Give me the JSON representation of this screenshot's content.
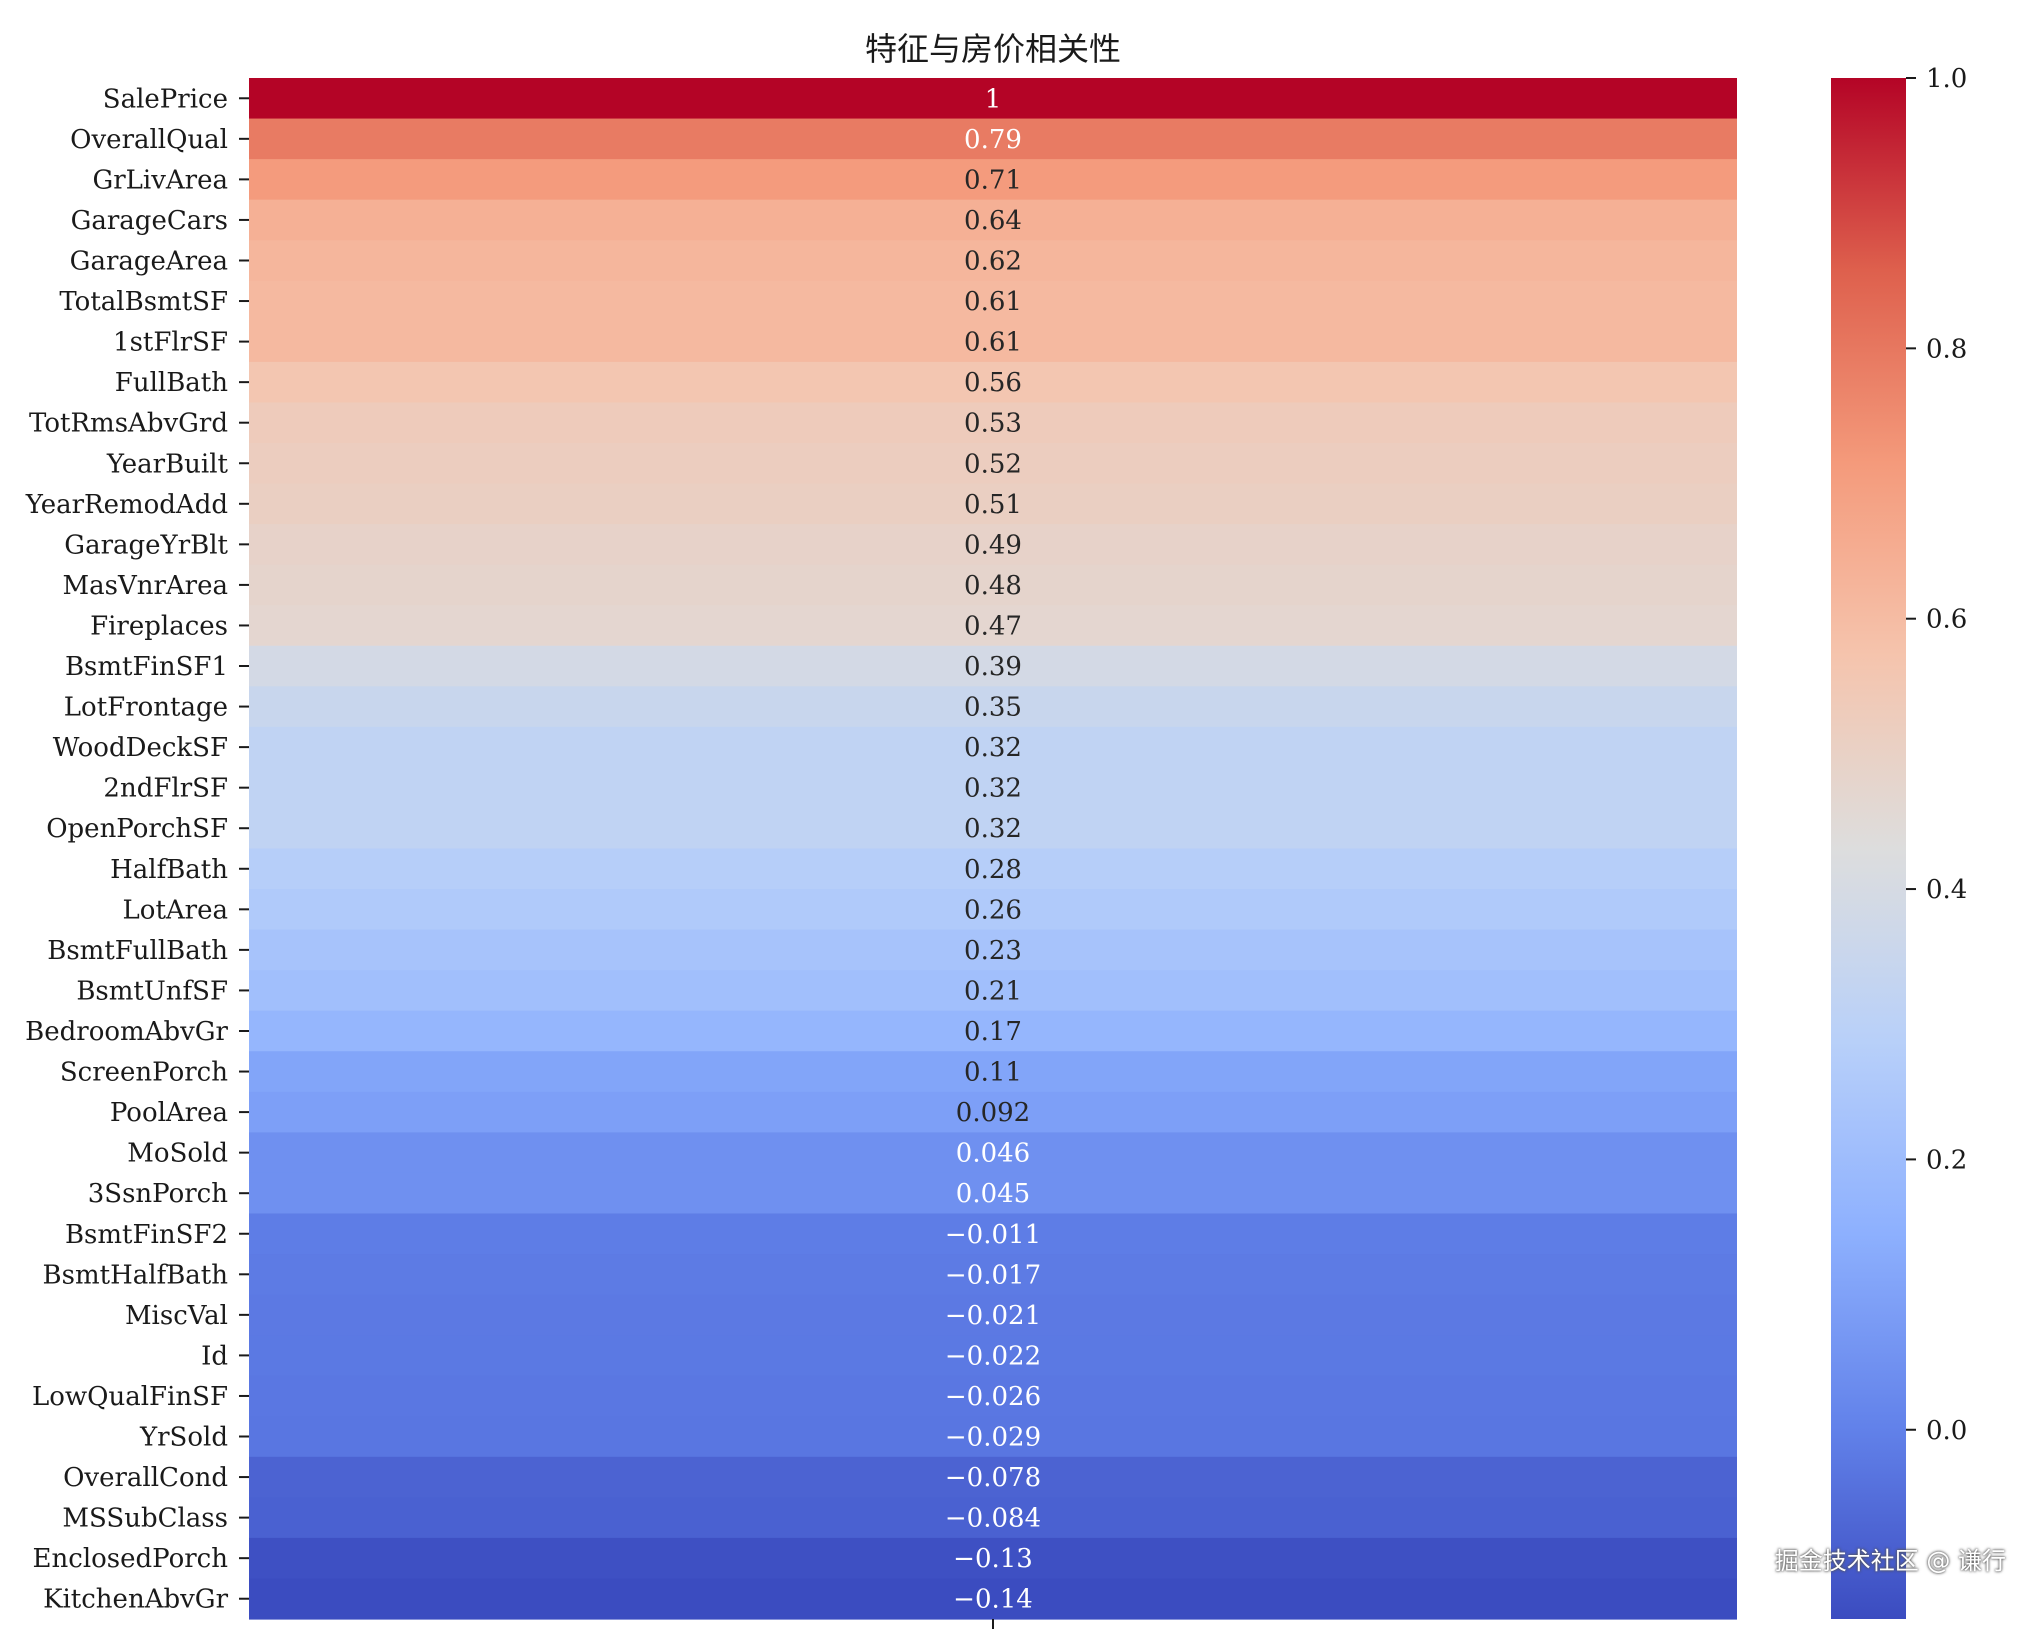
{
  "watermark": "掘金技术社区 @ 谦行",
  "chart_data": {
    "type": "heatmap",
    "title": "特征与房价相关性",
    "colormap": "coolwarm",
    "colorbar": {
      "range": [
        -0.14,
        1.0
      ],
      "ticks": [
        "0.0",
        "0.2",
        "0.4",
        "0.6",
        "0.8",
        "1.0"
      ],
      "tick_values": [
        0.0,
        0.2,
        0.4,
        0.6,
        0.8,
        1.0
      ]
    },
    "rows": [
      {
        "feature": "SalePrice",
        "value": 1,
        "label": "1"
      },
      {
        "feature": "OverallQual",
        "value": 0.79,
        "label": "0.79"
      },
      {
        "feature": "GrLivArea",
        "value": 0.71,
        "label": "0.71"
      },
      {
        "feature": "GarageCars",
        "value": 0.64,
        "label": "0.64"
      },
      {
        "feature": "GarageArea",
        "value": 0.62,
        "label": "0.62"
      },
      {
        "feature": "TotalBsmtSF",
        "value": 0.61,
        "label": "0.61"
      },
      {
        "feature": "1stFlrSF",
        "value": 0.61,
        "label": "0.61"
      },
      {
        "feature": "FullBath",
        "value": 0.56,
        "label": "0.56"
      },
      {
        "feature": "TotRmsAbvGrd",
        "value": 0.53,
        "label": "0.53"
      },
      {
        "feature": "YearBuilt",
        "value": 0.52,
        "label": "0.52"
      },
      {
        "feature": "YearRemodAdd",
        "value": 0.51,
        "label": "0.51"
      },
      {
        "feature": "GarageYrBlt",
        "value": 0.49,
        "label": "0.49"
      },
      {
        "feature": "MasVnrArea",
        "value": 0.48,
        "label": "0.48"
      },
      {
        "feature": "Fireplaces",
        "value": 0.47,
        "label": "0.47"
      },
      {
        "feature": "BsmtFinSF1",
        "value": 0.39,
        "label": "0.39"
      },
      {
        "feature": "LotFrontage",
        "value": 0.35,
        "label": "0.35"
      },
      {
        "feature": "WoodDeckSF",
        "value": 0.32,
        "label": "0.32"
      },
      {
        "feature": "2ndFlrSF",
        "value": 0.32,
        "label": "0.32"
      },
      {
        "feature": "OpenPorchSF",
        "value": 0.32,
        "label": "0.32"
      },
      {
        "feature": "HalfBath",
        "value": 0.28,
        "label": "0.28"
      },
      {
        "feature": "LotArea",
        "value": 0.26,
        "label": "0.26"
      },
      {
        "feature": "BsmtFullBath",
        "value": 0.23,
        "label": "0.23"
      },
      {
        "feature": "BsmtUnfSF",
        "value": 0.21,
        "label": "0.21"
      },
      {
        "feature": "BedroomAbvGr",
        "value": 0.17,
        "label": "0.17"
      },
      {
        "feature": "ScreenPorch",
        "value": 0.11,
        "label": "0.11"
      },
      {
        "feature": "PoolArea",
        "value": 0.092,
        "label": "0.092"
      },
      {
        "feature": "MoSold",
        "value": 0.046,
        "label": "0.046"
      },
      {
        "feature": "3SsnPorch",
        "value": 0.045,
        "label": "0.045"
      },
      {
        "feature": "BsmtFinSF2",
        "value": -0.011,
        "label": "-0.011"
      },
      {
        "feature": "BsmtHalfBath",
        "value": -0.017,
        "label": "-0.017"
      },
      {
        "feature": "MiscVal",
        "value": -0.021,
        "label": "-0.021"
      },
      {
        "feature": "Id",
        "value": -0.022,
        "label": "-0.022"
      },
      {
        "feature": "LowQualFinSF",
        "value": -0.026,
        "label": "-0.026"
      },
      {
        "feature": "YrSold",
        "value": -0.029,
        "label": "-0.029"
      },
      {
        "feature": "OverallCond",
        "value": -0.078,
        "label": "-0.078"
      },
      {
        "feature": "MSSubClass",
        "value": -0.084,
        "label": "-0.084"
      },
      {
        "feature": "EnclosedPorch",
        "value": -0.13,
        "label": "-0.13"
      },
      {
        "feature": "KitchenAbvGr",
        "value": -0.14,
        "label": "-0.14"
      }
    ]
  }
}
